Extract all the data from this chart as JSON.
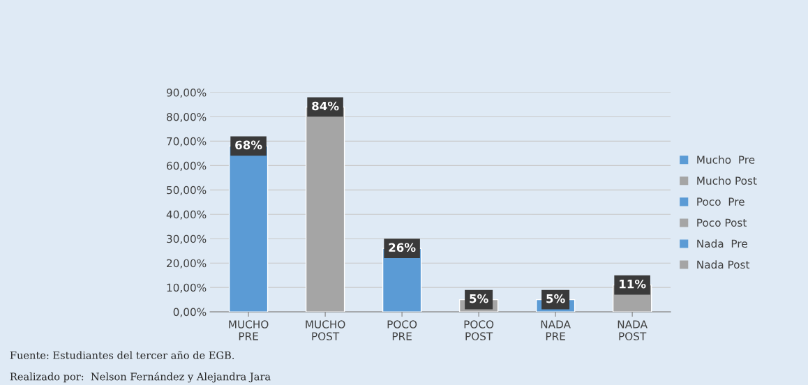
{
  "chart_data": {
    "type": "bar",
    "categories": [
      "MUCHO\nPRE",
      "MUCHO\nPOST",
      "POCO\nPRE",
      "POCO\nPOST",
      "NADA\nPRE",
      "NADA\nPOST"
    ],
    "series": [
      {
        "name": "Mucho  Pre",
        "color": "#5b9bd5",
        "values": [
          68,
          null,
          null,
          null,
          null,
          null
        ],
        "value_labels": [
          "68%",
          null,
          null,
          null,
          null,
          null
        ]
      },
      {
        "name": "Mucho Post",
        "color": "#a5a5a5",
        "values": [
          null,
          84,
          null,
          null,
          null,
          null
        ],
        "value_labels": [
          null,
          "84%",
          null,
          null,
          null,
          null
        ]
      },
      {
        "name": "Poco  Pre",
        "color": "#5b9bd5",
        "values": [
          null,
          null,
          26,
          null,
          null,
          null
        ],
        "value_labels": [
          null,
          null,
          "26%",
          null,
          null,
          null
        ]
      },
      {
        "name": "Poco Post",
        "color": "#a5a5a5",
        "values": [
          null,
          null,
          null,
          5,
          null,
          null
        ],
        "value_labels": [
          null,
          null,
          null,
          "5%",
          null,
          null
        ]
      },
      {
        "name": "Nada  Pre",
        "color": "#5b9bd5",
        "values": [
          null,
          null,
          null,
          null,
          5,
          null
        ],
        "value_labels": [
          null,
          null,
          null,
          null,
          "5%",
          null
        ]
      },
      {
        "name": "Nada Post",
        "color": "#a5a5a5",
        "values": [
          null,
          null,
          null,
          null,
          null,
          11
        ],
        "value_labels": [
          null,
          null,
          null,
          null,
          null,
          "11%"
        ]
      }
    ],
    "ylim": [
      0,
      90
    ],
    "yticks": [
      {
        "value": 0,
        "label": "0,00%"
      },
      {
        "value": 10,
        "label": "10,00%"
      },
      {
        "value": 20,
        "label": "20,00%"
      },
      {
        "value": 30,
        "label": "30,00%"
      },
      {
        "value": 40,
        "label": "40,00%"
      },
      {
        "value": 50,
        "label": "50,00%"
      },
      {
        "value": 60,
        "label": "60,00%"
      },
      {
        "value": 70,
        "label": "70,00%"
      },
      {
        "value": 80,
        "label": "80,00%"
      },
      {
        "value": 90,
        "label": "90,00%"
      }
    ],
    "grid": "y",
    "legend": "right",
    "annotations": [
      "Fuente: Estudiantes del tercer año de EGB.",
      "Realizado por:  Nelson Fernández y Alejandra Jara"
    ]
  }
}
